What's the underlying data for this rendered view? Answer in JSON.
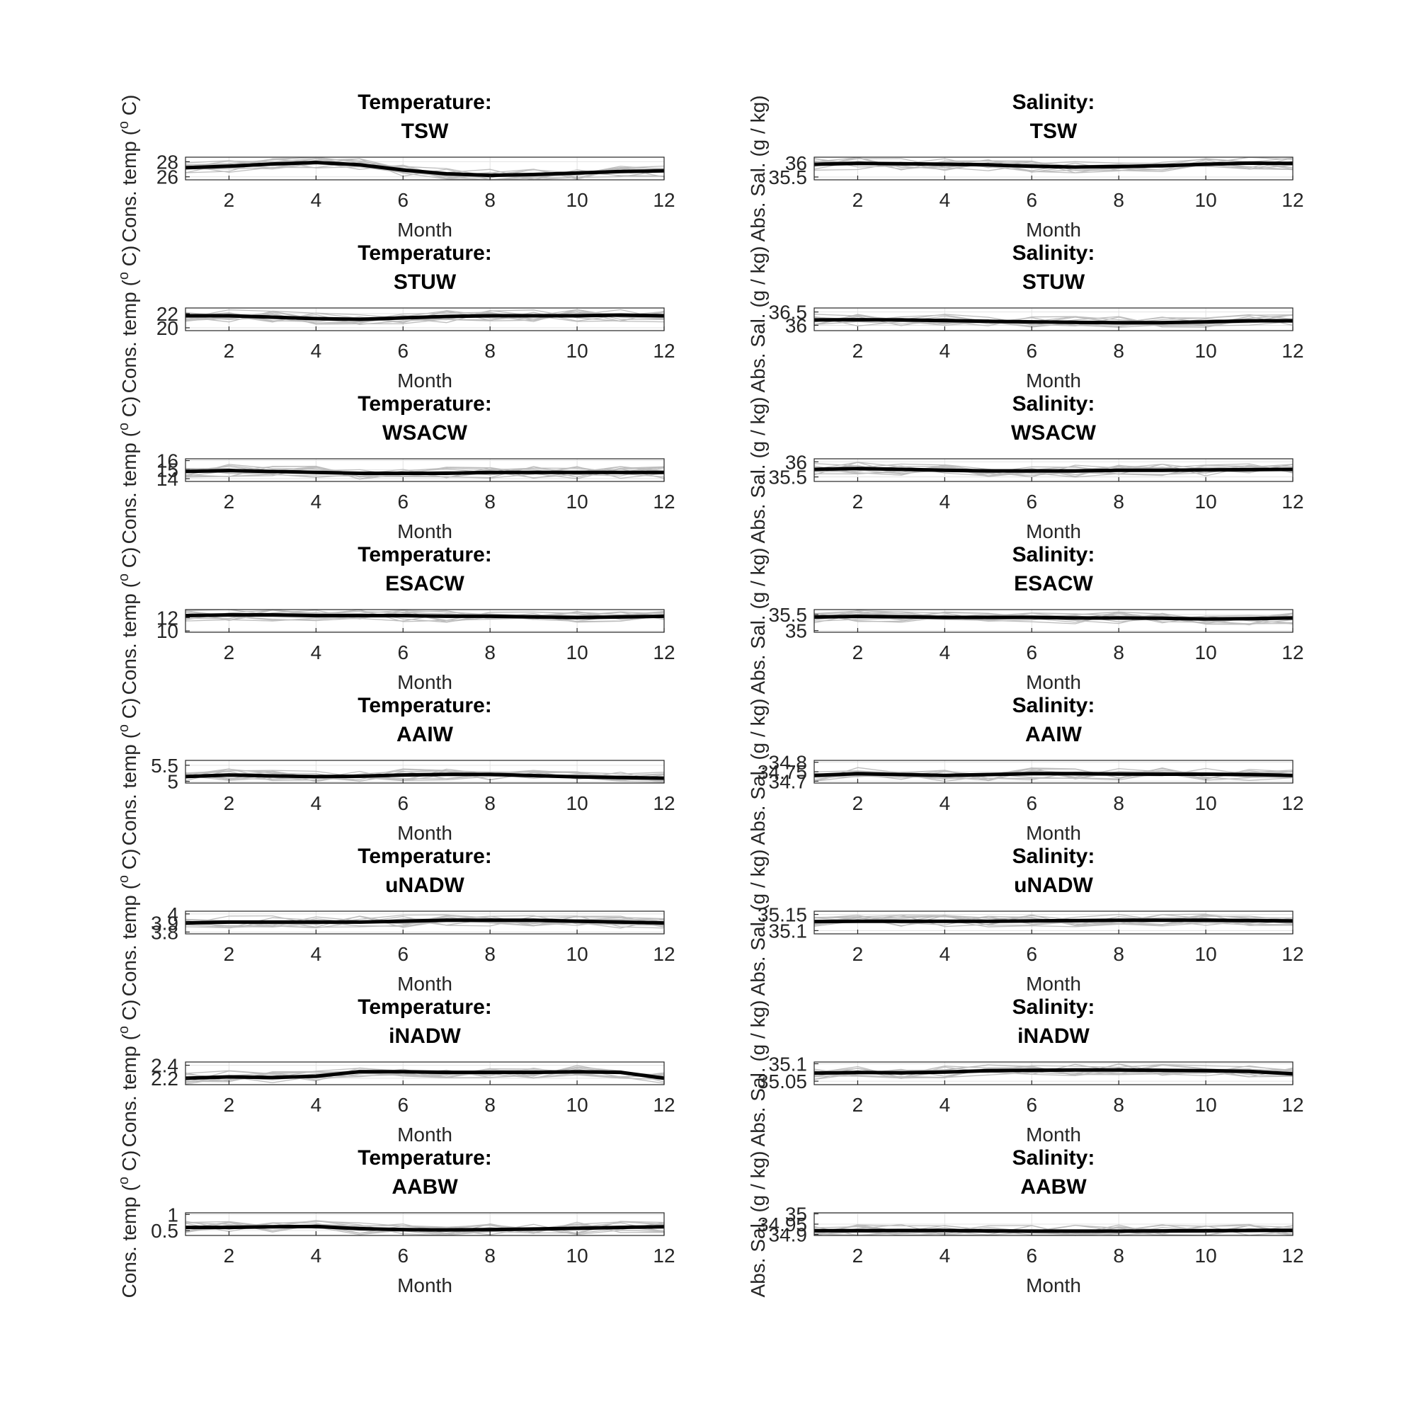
{
  "chart_data": [
    {
      "type": "line",
      "title": [
        "Temperature:",
        "TSW"
      ],
      "xlabel": "Month",
      "ylabel": "Cons. temp (o C)",
      "x": [
        1,
        2,
        3,
        4,
        5,
        6,
        7,
        8,
        9,
        10,
        11,
        12
      ],
      "xticks": [
        2,
        4,
        6,
        8,
        10,
        12
      ],
      "xlim": [
        1,
        12
      ],
      "ylim": [
        25.6,
        28.6
      ],
      "yticks": [
        26,
        28
      ],
      "grid": true,
      "series": [
        {
          "values": [
            27.2,
            27.4,
            27.7,
            27.9,
            27.6,
            26.9,
            26.4,
            26.2,
            26.3,
            26.5,
            26.7,
            26.8
          ]
        }
      ]
    },
    {
      "type": "line",
      "title": [
        "Salinity:",
        "TSW"
      ],
      "xlabel": "Month",
      "ylabel": "Abs. Sal. (g / kg)",
      "x": [
        1,
        2,
        3,
        4,
        5,
        6,
        7,
        8,
        9,
        10,
        11,
        12
      ],
      "xticks": [
        2,
        4,
        6,
        8,
        10,
        12
      ],
      "xlim": [
        1,
        12
      ],
      "ylim": [
        35.4,
        36.2
      ],
      "yticks": [
        35.5,
        36
      ],
      "grid": true,
      "series": [
        {
          "values": [
            35.95,
            35.98,
            35.97,
            35.95,
            35.93,
            35.88,
            35.85,
            35.87,
            35.9,
            35.95,
            35.99,
            35.98
          ]
        }
      ]
    },
    {
      "type": "line",
      "title": [
        "Temperature:",
        "STUW"
      ],
      "xlabel": "Month",
      "ylabel": "Cons. temp (o C)",
      "x": [
        1,
        2,
        3,
        4,
        5,
        6,
        7,
        8,
        9,
        10,
        11,
        12
      ],
      "xticks": [
        2,
        4,
        6,
        8,
        10,
        12
      ],
      "xlim": [
        1,
        12
      ],
      "ylim": [
        19.6,
        22.8
      ],
      "yticks": [
        20,
        22
      ],
      "grid": true,
      "series": [
        {
          "values": [
            21.7,
            21.7,
            21.5,
            21.3,
            21.2,
            21.4,
            21.6,
            21.7,
            21.7,
            21.7,
            21.8,
            21.7
          ]
        }
      ]
    },
    {
      "type": "line",
      "title": [
        "Salinity:",
        "STUW"
      ],
      "xlabel": "Month",
      "ylabel": "Abs. Sal. (g / kg)",
      "x": [
        1,
        2,
        3,
        4,
        5,
        6,
        7,
        8,
        9,
        10,
        11,
        12
      ],
      "xticks": [
        2,
        4,
        6,
        8,
        10,
        12
      ],
      "xlim": [
        1,
        12
      ],
      "ylim": [
        35.8,
        36.65
      ],
      "yticks": [
        36,
        36.5
      ],
      "grid": true,
      "series": [
        {
          "values": [
            36.2,
            36.21,
            36.2,
            36.18,
            36.15,
            36.13,
            36.11,
            36.1,
            36.1,
            36.13,
            36.17,
            36.17
          ]
        }
      ]
    },
    {
      "type": "line",
      "title": [
        "Temperature:",
        "WSACW"
      ],
      "xlabel": "Month",
      "ylabel": "Cons. temp (o C)",
      "x": [
        1,
        2,
        3,
        4,
        5,
        6,
        7,
        8,
        9,
        10,
        11,
        12
      ],
      "xticks": [
        2,
        4,
        6,
        8,
        10,
        12
      ],
      "xlim": [
        1,
        12
      ],
      "ylim": [
        13.7,
        16.2
      ],
      "yticks": [
        14,
        15,
        16
      ],
      "grid": true,
      "series": [
        {
          "values": [
            14.8,
            14.9,
            14.8,
            14.7,
            14.6,
            14.6,
            14.6,
            14.7,
            14.7,
            14.7,
            14.7,
            14.7
          ]
        }
      ]
    },
    {
      "type": "line",
      "title": [
        "Salinity:",
        "WSACW"
      ],
      "xlabel": "Month",
      "ylabel": "Abs. Sal. (g / kg)",
      "x": [
        1,
        2,
        3,
        4,
        5,
        6,
        7,
        8,
        9,
        10,
        11,
        12
      ],
      "xticks": [
        2,
        4,
        6,
        8,
        10,
        12
      ],
      "xlim": [
        1,
        12
      ],
      "ylim": [
        35.35,
        36.1
      ],
      "yticks": [
        35.5,
        36
      ],
      "grid": true,
      "series": [
        {
          "values": [
            35.75,
            35.78,
            35.75,
            35.72,
            35.7,
            35.7,
            35.7,
            35.72,
            35.72,
            35.73,
            35.74,
            35.75
          ]
        }
      ]
    },
    {
      "type": "line",
      "title": [
        "Temperature:",
        "ESACW"
      ],
      "xlabel": "Month",
      "ylabel": "Cons. temp (o C)",
      "x": [
        1,
        2,
        3,
        4,
        5,
        6,
        7,
        8,
        9,
        10,
        11,
        12
      ],
      "xticks": [
        2,
        4,
        6,
        8,
        10,
        12
      ],
      "xlim": [
        1,
        12
      ],
      "ylim": [
        9.8,
        13.2
      ],
      "yticks": [
        10,
        12
      ],
      "grid": true,
      "series": [
        {
          "values": [
            12.3,
            12.4,
            12.4,
            12.3,
            12.3,
            12.3,
            12.2,
            12.2,
            12.1,
            12.0,
            12.1,
            12.2
          ]
        }
      ]
    },
    {
      "type": "line",
      "title": [
        "Salinity:",
        "ESACW"
      ],
      "xlabel": "Month",
      "ylabel": "Abs. Sal. (g / kg)",
      "x": [
        1,
        2,
        3,
        4,
        5,
        6,
        7,
        8,
        9,
        10,
        11,
        12
      ],
      "xticks": [
        2,
        4,
        6,
        8,
        10,
        12
      ],
      "xlim": [
        1,
        12
      ],
      "ylim": [
        34.95,
        35.65
      ],
      "yticks": [
        35,
        35.5
      ],
      "grid": true,
      "series": [
        {
          "values": [
            35.42,
            35.44,
            35.43,
            35.41,
            35.41,
            35.41,
            35.39,
            35.39,
            35.38,
            35.36,
            35.37,
            35.39
          ]
        }
      ]
    },
    {
      "type": "line",
      "title": [
        "Temperature:",
        "AAIW"
      ],
      "xlabel": "Month",
      "ylabel": "Cons. temp (o C)",
      "x": [
        1,
        2,
        3,
        4,
        5,
        6,
        7,
        8,
        9,
        10,
        11,
        12
      ],
      "xticks": [
        2,
        4,
        6,
        8,
        10,
        12
      ],
      "xlim": [
        1,
        12
      ],
      "ylim": [
        4.95,
        5.65
      ],
      "yticks": [
        5,
        5.5
      ],
      "grid": true,
      "series": [
        {
          "values": [
            5.15,
            5.2,
            5.17,
            5.15,
            5.16,
            5.2,
            5.22,
            5.22,
            5.18,
            5.14,
            5.12,
            5.1
          ]
        }
      ]
    },
    {
      "type": "line",
      "title": [
        "Salinity:",
        "AAIW"
      ],
      "xlabel": "Month",
      "ylabel": "Abs. Sal. (g / kg)",
      "x": [
        1,
        2,
        3,
        4,
        5,
        6,
        7,
        8,
        9,
        10,
        11,
        12
      ],
      "xticks": [
        2,
        4,
        6,
        8,
        10,
        12
      ],
      "xlim": [
        1,
        12
      ],
      "ylim": [
        34.69,
        34.81
      ],
      "yticks": [
        34.7,
        34.75,
        34.8
      ],
      "grid": true,
      "series": [
        {
          "values": [
            34.73,
            34.74,
            34.735,
            34.73,
            34.735,
            34.74,
            34.74,
            34.738,
            34.737,
            34.737,
            34.735,
            34.73
          ]
        }
      ]
    },
    {
      "type": "line",
      "title": [
        "Temperature:",
        "uNADW"
      ],
      "xlabel": "Month",
      "ylabel": "Cons. temp (o C)",
      "x": [
        1,
        2,
        3,
        4,
        5,
        6,
        7,
        8,
        9,
        10,
        11,
        12
      ],
      "xticks": [
        2,
        4,
        6,
        8,
        10,
        12
      ],
      "xlim": [
        1,
        12
      ],
      "ylim": [
        3.78,
        4.03
      ],
      "yticks": [
        3.8,
        3.9,
        4
      ],
      "grid": true,
      "series": [
        {
          "values": [
            3.9,
            3.91,
            3.91,
            3.91,
            3.91,
            3.92,
            3.93,
            3.93,
            3.93,
            3.92,
            3.91,
            3.9
          ]
        }
      ]
    },
    {
      "type": "line",
      "title": [
        "Salinity:",
        "uNADW"
      ],
      "xlabel": "Month",
      "ylabel": "Abs. Sal. (g / kg)",
      "x": [
        1,
        2,
        3,
        4,
        5,
        6,
        7,
        8,
        9,
        10,
        11,
        12
      ],
      "xticks": [
        2,
        4,
        6,
        8,
        10,
        12
      ],
      "xlim": [
        1,
        12
      ],
      "ylim": [
        35.09,
        35.16
      ],
      "yticks": [
        35.1,
        35.15
      ],
      "grid": true,
      "series": [
        {
          "values": [
            35.128,
            35.129,
            35.129,
            35.129,
            35.129,
            35.13,
            35.131,
            35.132,
            35.132,
            35.132,
            35.131,
            35.13
          ]
        }
      ]
    },
    {
      "type": "line",
      "title": [
        "Temperature:",
        "iNADW"
      ],
      "xlabel": "Month",
      "ylabel": "Cons. temp (o C)",
      "x": [
        1,
        2,
        3,
        4,
        5,
        6,
        7,
        8,
        9,
        10,
        11,
        12
      ],
      "xticks": [
        2,
        4,
        6,
        8,
        10,
        12
      ],
      "xlim": [
        1,
        12
      ],
      "ylim": [
        2.1,
        2.45
      ],
      "yticks": [
        2.2,
        2.4
      ],
      "grid": true,
      "series": [
        {
          "values": [
            2.2,
            2.22,
            2.21,
            2.23,
            2.3,
            2.3,
            2.29,
            2.29,
            2.29,
            2.3,
            2.29,
            2.2
          ]
        }
      ]
    },
    {
      "type": "line",
      "title": [
        "Salinity:",
        "iNADW"
      ],
      "xlabel": "Month",
      "ylabel": "Abs. Sal. (g / kg)",
      "x": [
        1,
        2,
        3,
        4,
        5,
        6,
        7,
        8,
        9,
        10,
        11,
        12
      ],
      "xticks": [
        2,
        4,
        6,
        8,
        10,
        12
      ],
      "xlim": [
        1,
        12
      ],
      "ylim": [
        35.04,
        35.105
      ],
      "yticks": [
        35.05,
        35.1
      ],
      "grid": true,
      "series": [
        {
          "values": [
            35.073,
            35.075,
            35.074,
            35.076,
            35.08,
            35.081,
            35.082,
            35.082,
            35.081,
            35.08,
            35.078,
            35.071
          ]
        }
      ]
    },
    {
      "type": "line",
      "title": [
        "Temperature:",
        "AABW"
      ],
      "xlabel": "Month",
      "ylabel": "Cons. temp (o C)",
      "x": [
        1,
        2,
        3,
        4,
        5,
        6,
        7,
        8,
        9,
        10,
        11,
        12
      ],
      "xticks": [
        2,
        4,
        6,
        8,
        10,
        12
      ],
      "xlim": [
        1,
        12
      ],
      "ylim": [
        0.35,
        1.05
      ],
      "yticks": [
        0.5,
        1
      ],
      "grid": true,
      "series": [
        {
          "values": [
            0.6,
            0.6,
            0.62,
            0.63,
            0.56,
            0.53,
            0.52,
            0.53,
            0.55,
            0.57,
            0.6,
            0.62
          ]
        }
      ]
    },
    {
      "type": "line",
      "title": [
        "Salinity:",
        "AABW"
      ],
      "xlabel": "Month",
      "ylabel": "Abs. Sal. (g / kg)",
      "x": [
        1,
        2,
        3,
        4,
        5,
        6,
        7,
        8,
        9,
        10,
        11,
        12
      ],
      "xticks": [
        2,
        4,
        6,
        8,
        10,
        12
      ],
      "xlim": [
        1,
        12
      ],
      "ylim": [
        34.895,
        35.005
      ],
      "yticks": [
        34.9,
        34.95,
        35
      ],
      "grid": true,
      "series": [
        {
          "values": [
            34.918,
            34.918,
            34.919,
            34.919,
            34.917,
            34.916,
            34.916,
            34.916,
            34.917,
            34.918,
            34.919,
            34.92
          ]
        }
      ]
    }
  ]
}
